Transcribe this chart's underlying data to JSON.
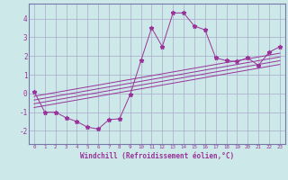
{
  "xlabel": "Windchill (Refroidissement éolien,°C)",
  "background_color": "#cce8e8",
  "grid_color": "#aaaacc",
  "line_color": "#993399",
  "spine_color": "#7777aa",
  "x_ticks": [
    0,
    1,
    2,
    3,
    4,
    5,
    6,
    7,
    8,
    9,
    10,
    11,
    12,
    13,
    14,
    15,
    16,
    17,
    18,
    19,
    20,
    21,
    22,
    23
  ],
  "y_ticks": [
    -2,
    -1,
    0,
    1,
    2,
    3,
    4
  ],
  "ylim": [
    -2.7,
    4.8
  ],
  "xlim": [
    -0.5,
    23.5
  ],
  "main_series_x": [
    0,
    1,
    2,
    3,
    4,
    5,
    6,
    7,
    8,
    9,
    10,
    11,
    12,
    13,
    14,
    15,
    16,
    17,
    18,
    19,
    20,
    21,
    22,
    23
  ],
  "main_series_y": [
    0.1,
    -1.0,
    -1.0,
    -1.3,
    -1.5,
    -1.8,
    -1.9,
    -1.4,
    -1.35,
    -0.05,
    1.75,
    3.5,
    2.5,
    4.3,
    4.3,
    3.6,
    3.4,
    1.9,
    1.75,
    1.7,
    1.9,
    1.5,
    2.2,
    2.5
  ],
  "line1_y": [
    -0.75,
    1.55
  ],
  "line2_y": [
    -0.55,
    1.75
  ],
  "line3_y": [
    -0.35,
    1.95
  ],
  "line4_y": [
    -0.15,
    2.15
  ]
}
